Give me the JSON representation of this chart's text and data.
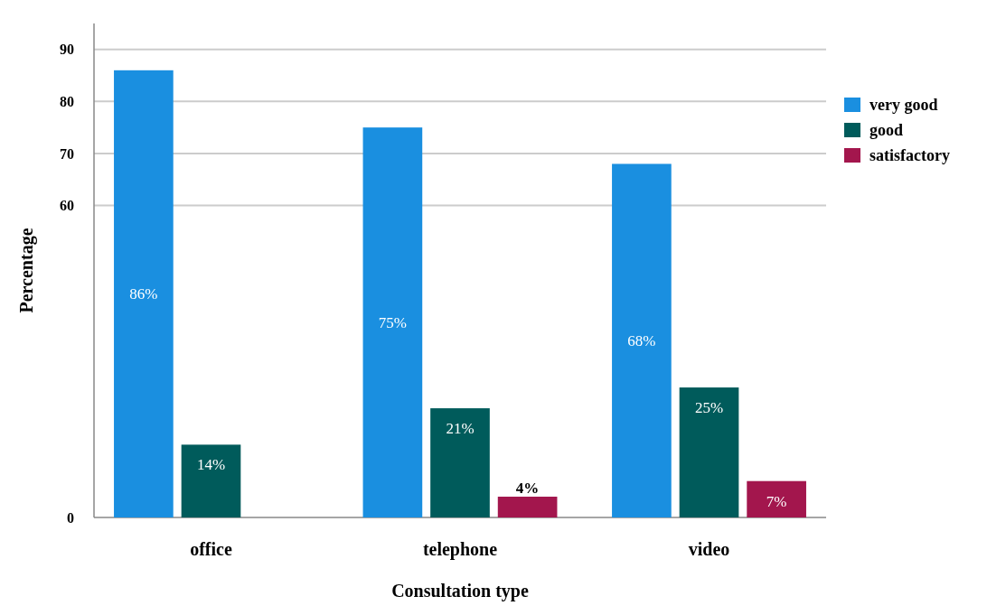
{
  "chart_data": {
    "type": "bar",
    "xlabel": "Consultation type",
    "ylabel": "Percentage",
    "categories": [
      "office",
      "telephone",
      "video"
    ],
    "series": [
      {
        "name": "very good",
        "color": "#1a8fe0",
        "values": [
          86,
          75,
          68
        ],
        "value_labels": [
          "86%",
          "75%",
          "68%"
        ]
      },
      {
        "name": "good",
        "color": "#005b5b",
        "values": [
          14,
          21,
          25
        ],
        "value_labels": [
          "14%",
          "21%",
          "25%"
        ]
      },
      {
        "name": "satisfactory",
        "color": "#a3164d",
        "values": [
          null,
          4,
          7
        ],
        "value_labels": [
          null,
          "4%",
          "7%"
        ]
      }
    ],
    "ylim": [
      0,
      95
    ],
    "yticks": [
      0,
      60,
      70,
      80,
      90
    ],
    "grid": "y",
    "legend": "top right"
  }
}
